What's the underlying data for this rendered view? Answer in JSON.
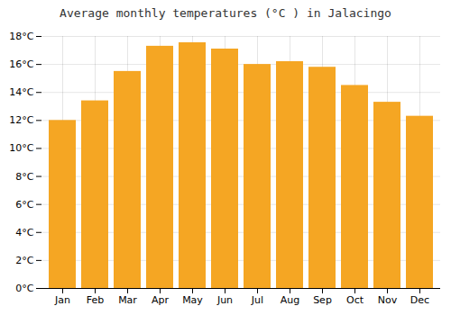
{
  "chart_data": {
    "type": "bar",
    "title": "Average monthly temperatures (°C ) in Jalacingo",
    "categories": [
      "Jan",
      "Feb",
      "Mar",
      "Apr",
      "May",
      "Jun",
      "Jul",
      "Aug",
      "Sep",
      "Oct",
      "Nov",
      "Dec"
    ],
    "values": [
      12.0,
      13.4,
      15.5,
      17.3,
      17.55,
      17.1,
      16.0,
      16.2,
      15.8,
      14.5,
      13.3,
      12.3
    ],
    "color": "#F5A623",
    "ylim": [
      0,
      18
    ],
    "yticks": [
      {
        "value": 0,
        "label": "0°C"
      },
      {
        "value": 2,
        "label": "2°C"
      },
      {
        "value": 4,
        "label": "4°C"
      },
      {
        "value": 6,
        "label": "6°C"
      },
      {
        "value": 8,
        "label": "8°C"
      },
      {
        "value": 10,
        "label": "10°C"
      },
      {
        "value": 12,
        "label": "12°C"
      },
      {
        "value": 14,
        "label": "14°C"
      },
      {
        "value": 16,
        "label": "16°C"
      },
      {
        "value": 18,
        "label": "18°C"
      }
    ],
    "grid": true
  }
}
